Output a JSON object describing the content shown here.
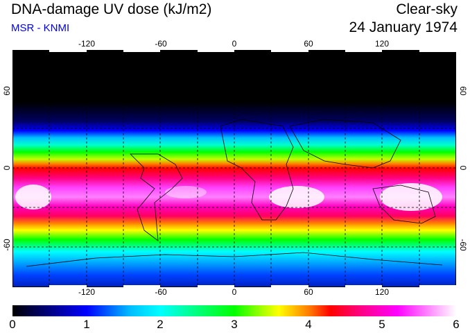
{
  "header": {
    "title": "DNA-damage UV dose (kJ/m2)",
    "subtitle": "MSR - KNMI",
    "mode": "Clear-sky",
    "date": "24 January 1974"
  },
  "axes": {
    "longitude_ticks": [
      "-120",
      "-60",
      "0",
      "60",
      "120"
    ],
    "latitude_ticks_left": [
      "60",
      "0",
      "-60"
    ],
    "latitude_ticks_right": [
      "60",
      "0",
      "-60"
    ]
  },
  "colorbar": {
    "labels": [
      "0",
      "1",
      "2",
      "3",
      "4",
      "5",
      "6"
    ],
    "stops": [
      {
        "value": 0,
        "color": "#000000"
      },
      {
        "value": 0.5,
        "color": "#000080"
      },
      {
        "value": 1.0,
        "color": "#0000ff"
      },
      {
        "value": 1.6,
        "color": "#00bfff"
      },
      {
        "value": 2.0,
        "color": "#00ffff"
      },
      {
        "value": 2.6,
        "color": "#00ff60"
      },
      {
        "value": 3.0,
        "color": "#00ff00"
      },
      {
        "value": 3.4,
        "color": "#b0ff00"
      },
      {
        "value": 3.6,
        "color": "#ffff00"
      },
      {
        "value": 4.0,
        "color": "#ff8000"
      },
      {
        "value": 4.3,
        "color": "#ff0000"
      },
      {
        "value": 4.7,
        "color": "#ff0080"
      },
      {
        "value": 5.2,
        "color": "#ff00ff"
      },
      {
        "value": 6.0,
        "color": "#ffffff"
      }
    ]
  },
  "colors": {
    "grid": "#000000",
    "coast": "#000000",
    "subtitle": "#0000ee"
  }
}
